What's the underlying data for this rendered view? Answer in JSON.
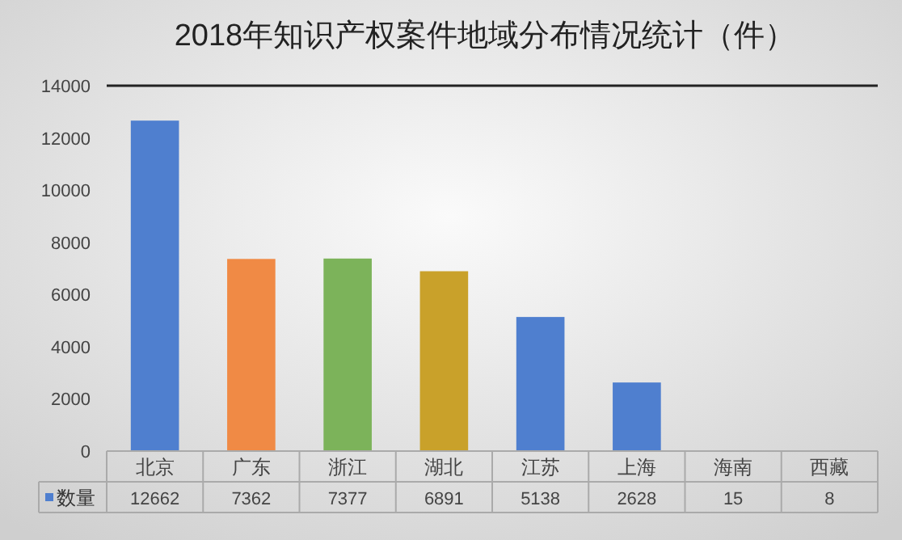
{
  "chart_data": {
    "type": "bar",
    "title": "2018年知识产权案件地域分布情况统计（件）",
    "categories": [
      "北京",
      "广东",
      "浙江",
      "湖北",
      "江苏",
      "上海",
      "海南",
      "西藏"
    ],
    "series": [
      {
        "name": "数量",
        "color": "#4f7fcf",
        "colors": [
          "#4f7fcf",
          "#f08a45",
          "#7cb35a",
          "#c9a12a",
          "#4f7fcf",
          "#4f7fcf",
          "#4f7fcf",
          "#4f7fcf"
        ],
        "values": [
          12662,
          7362,
          7377,
          6891,
          5138,
          2628,
          15,
          8
        ]
      }
    ],
    "ylim": [
      0,
      14000
    ],
    "yticks": [
      0,
      2000,
      4000,
      6000,
      8000,
      10000,
      12000,
      14000
    ],
    "data_labels": true,
    "legend": "bottom left",
    "grid": false
  }
}
